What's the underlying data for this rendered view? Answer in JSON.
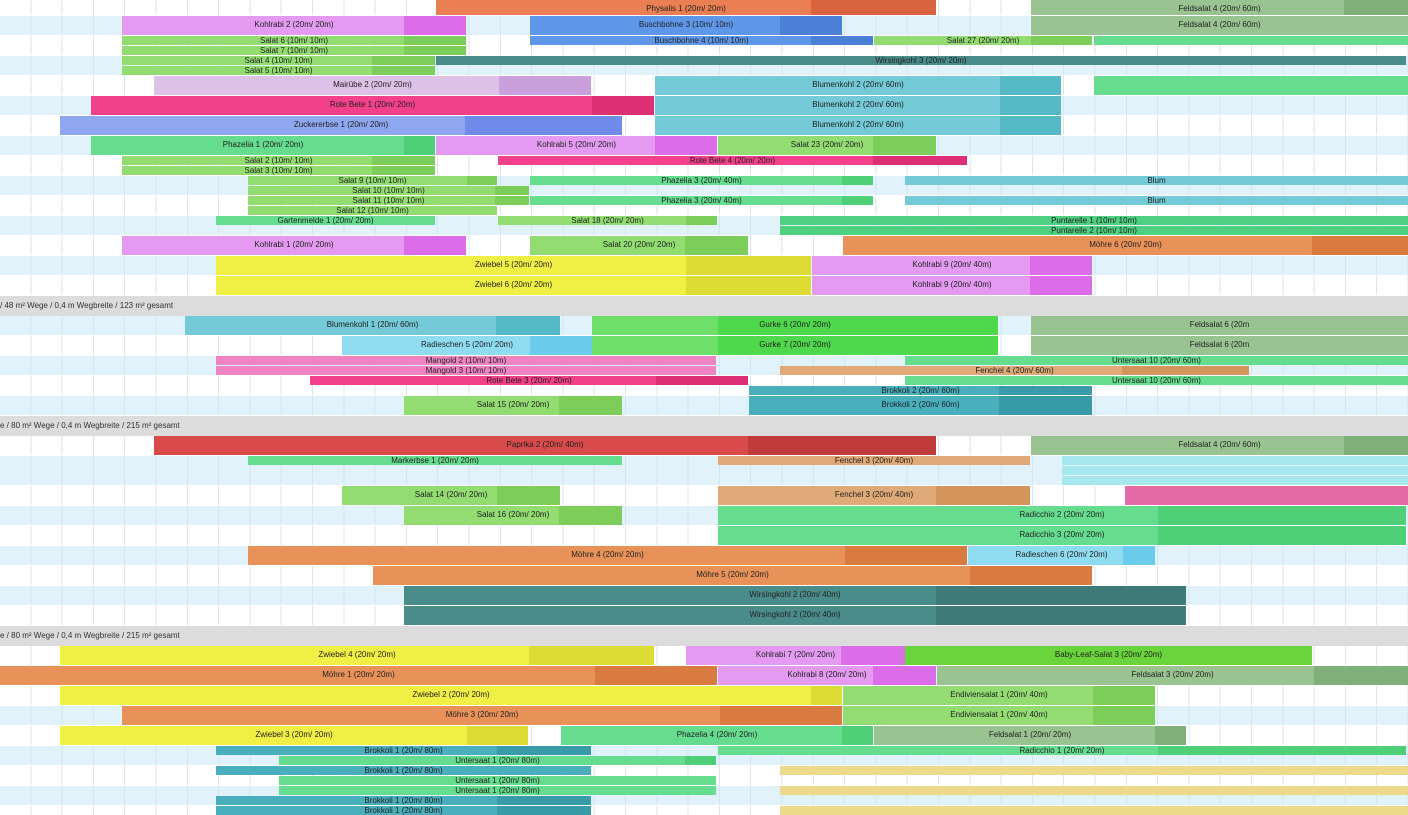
{
  "sections": [
    {
      "label": "/ 48 m² Wege / 0,4 m Wegbreite / 123 m² gesamt"
    },
    {
      "label": "e / 80 m² Wege / 0,4 m Wegbreite / 215 m² gesamt"
    },
    {
      "label": "e / 80 m² Wege / 0,4 m Wegbreite / 215 m² gesamt"
    }
  ],
  "bars": [
    {
      "name": "Physalis 1 (20m/ 20m)",
      "color": "#ea7f54",
      "shade": "#d9633e"
    },
    {
      "name": "Feldsalat 4 (20m/ 60m)",
      "color": "#99c491",
      "shade": "#80b079"
    },
    {
      "name": "Kohlrabi 2 (20m/ 20m)",
      "color": "#e39af0",
      "shade": "#db6ee8"
    },
    {
      "name": "Buschbohne 3 (10m/ 10m)",
      "color": "#5f97e8",
      "shade": "#4a81d6"
    },
    {
      "name": "Feldsalat 4 (20m/ 60m)",
      "color": "#99c491",
      "shade": "#80b079"
    },
    {
      "name": "Salat 6 (10m/ 10m)",
      "color": "#92dc72",
      "shade": "#7ccd5a"
    },
    {
      "name": "Salat 7 (10m/ 10m)",
      "color": "#92dc72",
      "shade": "#7ccd5a"
    },
    {
      "name": "Buschbohne 4 (10m/ 10m)",
      "color": "#5f97e8",
      "shade": "#4a81d6"
    },
    {
      "name": "Salat 27 (20m/ 20m)",
      "color": "#92dc72",
      "shade": "#7ccd5a"
    },
    {
      "name": "",
      "color": "#66dc8e",
      "shade": "#50d07a"
    },
    {
      "name": "Salat 4 (10m/ 10m)",
      "color": "#92dc72",
      "shade": "#7ccd5a"
    },
    {
      "name": "Salat 5 (10m/ 10m)",
      "color": "#92dc72",
      "shade": "#7ccd5a"
    },
    {
      "name": "Wirsingkohl 3 (20m/ 20m)",
      "color": "#4a8c8a",
      "shade": "#3e7a78"
    },
    {
      "name": "Mairübe 2 (20m/ 20m)",
      "color": "#ddc1e6",
      "shade": "#c99fdc"
    },
    {
      "name": "Blumenkohl 2 (20m/ 60m)",
      "color": "#74cad6",
      "shade": "#56b9c6"
    },
    {
      "name": "",
      "color": "#66dc8e",
      "shade": "#50d07a"
    },
    {
      "name": "Rote Bete 1 (20m/ 20m)",
      "color": "#f2408a",
      "shade": "#dd2f76"
    },
    {
      "name": "Blumenkohl 2 (20m/ 60m)",
      "color": "#74cad6",
      "shade": "#56b9c6"
    },
    {
      "name": "Zuckererbse 1 (20m/ 20m)",
      "color": "#8fa6f0",
      "shade": "#6f8ae8"
    },
    {
      "name": "Blumenkohl 2 (20m/ 60m)",
      "color": "#74cad6",
      "shade": "#56b9c6"
    },
    {
      "name": "Phazelia 1 (20m/ 20m)",
      "color": "#66dc8e",
      "shade": "#4fcf78"
    },
    {
      "name": "Kohlrabi 5 (20m/ 20m)",
      "color": "#e39af0",
      "shade": "#db6ee8"
    },
    {
      "name": "Salat 23 (20m/ 20m)",
      "color": "#92dc72",
      "shade": "#7ccd5a"
    },
    {
      "name": "Salat 2 (10m/ 10m)",
      "color": "#92dc72",
      "shade": "#7ccd5a"
    },
    {
      "name": "Rote Bete 4 (20m/ 20m)",
      "color": "#f2408a",
      "shade": "#dd2f76"
    },
    {
      "name": "Salat 3 (10m/ 10m)",
      "color": "#92dc72",
      "shade": "#7ccd5a"
    },
    {
      "name": "Salat 9 (10m/ 10m)",
      "color": "#92dc72",
      "shade": "#7ccd5a"
    },
    {
      "name": "Phazelia 3 (20m/ 40m)",
      "color": "#66dc8e",
      "shade": "#4fcf78"
    },
    {
      "name": "Blum",
      "color": "#74cad6",
      "shade": "#56b9c6"
    },
    {
      "name": "Salat 10 (10m/ 10m)",
      "color": "#92dc72",
      "shade": "#7ccd5a"
    },
    {
      "name": "Salat 11 (10m/ 10m)",
      "color": "#92dc72",
      "shade": "#7ccd5a"
    },
    {
      "name": "Phazelia 3 (20m/ 40m)",
      "color": "#66dc8e",
      "shade": "#4fcf78"
    },
    {
      "name": "Blum",
      "color": "#74cad6",
      "shade": "#56b9c6"
    },
    {
      "name": "Salat 12 (10m/ 10m)",
      "color": "#92dc72",
      "shade": "#7ccd5a"
    },
    {
      "name": "Gartenmelde 1 (20m/ 20m)",
      "color": "#66dc8e",
      "shade": "#4fcf78"
    },
    {
      "name": "Salat 18 (20m/ 20m)",
      "color": "#92dc72",
      "shade": "#7ccd5a"
    },
    {
      "name": "Puntarelle 1 (10m/ 10m)",
      "color": "#4fd080",
      "shade": "#3fc070"
    },
    {
      "name": "Puntarelle 2 (10m/ 10m)",
      "color": "#4fd080",
      "shade": "#3fc070"
    },
    {
      "name": "Kohlrabi 1 (20m/ 20m)",
      "color": "#e39af0",
      "shade": "#db6ee8"
    },
    {
      "name": "Salat 20 (20m/ 20m)",
      "color": "#92dc72",
      "shade": "#7ccd5a"
    },
    {
      "name": "Möhre 6 (20m/ 20m)",
      "color": "#e8925a",
      "shade": "#d97b40"
    },
    {
      "name": "Zwiebel 5 (20m/ 20m)",
      "color": "#f0ef45",
      "shade": "#dcdc35"
    },
    {
      "name": "Kohlrabi 9 (20m/ 40m)",
      "color": "#e39af0",
      "shade": "#db6ee8"
    },
    {
      "name": "Zwiebel 6 (20m/ 20m)",
      "color": "#f0ef45",
      "shade": "#dcdc35"
    },
    {
      "name": "Kohlrabi 9 (20m/ 40m)",
      "color": "#e39af0",
      "shade": "#db6ee8"
    },
    {
      "name": "Blumenkohl 1 (20m/ 60m)",
      "color": "#74cad6",
      "shade": "#56b9c6"
    },
    {
      "name": "Gurke 6 (20m/ 20m)",
      "color": "#6ee06a",
      "shade": "#50d84c"
    },
    {
      "name": "Feldsalat 6 (20m",
      "color": "#99c491",
      "shade": "#80b079"
    },
    {
      "name": "Radieschen 5 (20m/ 20m)",
      "color": "#8fdcf0",
      "shade": "#6acbea"
    },
    {
      "name": "Gurke 7 (20m/ 20m)",
      "color": "#6ee06a",
      "shade": "#50d84c"
    },
    {
      "name": "Feldsalat 6 (20m",
      "color": "#99c491",
      "shade": "#80b079"
    },
    {
      "name": "Mangold 2 (10m/ 10m)",
      "color": "#f083c4",
      "shade": "#e569b3"
    },
    {
      "name": "Untersaat 10 (20m/ 60m)",
      "color": "#66dc8e",
      "shade": "#4fcf78"
    },
    {
      "name": "Mangold 3 (10m/ 10m)",
      "color": "#f083c4",
      "shade": "#e569b3"
    },
    {
      "name": "Fenchel 4 (20m/ 60m)",
      "color": "#dfaa78",
      "shade": "#d4955a"
    },
    {
      "name": "Rote Bete 3 (20m/ 20m)",
      "color": "#f2408a",
      "shade": "#dd2f76"
    },
    {
      "name": "Untersaat 10 (20m/ 60m)",
      "color": "#66dc8e",
      "shade": "#4fcf78"
    },
    {
      "name": "Brokkoli 2 (20m/ 60m)",
      "color": "#4aafbc",
      "shade": "#3a9ba8"
    },
    {
      "name": "Salat 15 (20m/ 20m)",
      "color": "#92dc72",
      "shade": "#7ccd5a"
    },
    {
      "name": "Brokkoli 2 (20m/ 60m)",
      "color": "#4aafbc",
      "shade": "#3a9ba8"
    },
    {
      "name": "Paprika 2 (20m/ 40m)",
      "color": "#d94b4b",
      "shade": "#c03c3c"
    },
    {
      "name": "Feldsalat 4 (20m/ 60m)",
      "color": "#99c491",
      "shade": "#80b079"
    },
    {
      "name": "Markerbse 1 (20m/ 20m)",
      "color": "#66dc8e",
      "shade": "#4fcf78"
    },
    {
      "name": "Fenchel 3 (20m/ 40m)",
      "color": "#dfaa78",
      "shade": "#d4955a"
    },
    {
      "name": "",
      "color": "#a6e8ee",
      "shade": "#8cdde6"
    },
    {
      "name": "",
      "color": "#a6e8ee",
      "shade": "#8cdde6"
    },
    {
      "name": "",
      "color": "#a6e8ee",
      "shade": "#8cdde6"
    },
    {
      "name": "Salat 14 (20m/ 20m)",
      "color": "#92dc72",
      "shade": "#7ccd5a"
    },
    {
      "name": "Fenchel 3 (20m/ 40m)",
      "color": "#dfaa78",
      "shade": "#d4955a"
    },
    {
      "name": "",
      "color": "#e46aa6",
      "shade": "#d9559a"
    },
    {
      "name": "Salat 16 (20m/ 20m)",
      "color": "#92dc72",
      "shade": "#7ccd5a"
    },
    {
      "name": "Radicchio 2 (20m/ 20m)",
      "color": "#66dc8e",
      "shade": "#4fcf78"
    },
    {
      "name": "Radicchio 3 (20m/ 20m)",
      "color": "#66dc8e",
      "shade": "#4fcf78"
    },
    {
      "name": "Möhre 4 (20m/ 20m)",
      "color": "#e8925a",
      "shade": "#d97b40"
    },
    {
      "name": "Radieschen 6 (20m/ 20m)",
      "color": "#8fdcf0",
      "shade": "#6acbea"
    },
    {
      "name": "Möhre 5 (20m/ 20m)",
      "color": "#e8925a",
      "shade": "#d97b40"
    },
    {
      "name": "Wirsingkohl 2 (20m/ 40m)",
      "color": "#4a8c8a",
      "shade": "#3e7a78"
    },
    {
      "name": "Wirsingkohl 2 (20m/ 40m)",
      "color": "#4a8c8a",
      "shade": "#3e7a78"
    },
    {
      "name": "Zwiebel 4 (20m/ 20m)",
      "color": "#f0ef45",
      "shade": "#dcdc35"
    },
    {
      "name": "Kohlrabi 7 (20m/ 20m)",
      "color": "#e39af0",
      "shade": "#db6ee8"
    },
    {
      "name": "Baby-Leaf-Salat 3 (20m/ 20m)",
      "color": "#6ad43c",
      "shade": "#56c42a"
    },
    {
      "name": "Möhre 1 (20m/ 20m)",
      "color": "#e8925a",
      "shade": "#d97b40"
    },
    {
      "name": "Kohlrabi 8 (20m/ 20m)",
      "color": "#e39af0",
      "shade": "#db6ee8"
    },
    {
      "name": "Feldsalat 3 (20m/ 20m)",
      "color": "#99c491",
      "shade": "#80b079"
    },
    {
      "name": "Zwiebel 2 (20m/ 20m)",
      "color": "#f0ef45",
      "shade": "#dcdc35"
    },
    {
      "name": "Endiviensalat 1 (20m/ 40m)",
      "color": "#92dc72",
      "shade": "#7ccd5a"
    },
    {
      "name": "Möhre 3 (20m/ 20m)",
      "color": "#e8925a",
      "shade": "#d97b40"
    },
    {
      "name": "Endiviensalat 1 (20m/ 40m)",
      "color": "#92dc72",
      "shade": "#7ccd5a"
    },
    {
      "name": "Zwiebel 3 (20m/ 20m)",
      "color": "#f0ef45",
      "shade": "#dcdc35"
    },
    {
      "name": "Phazelia 4 (20m/ 20m)",
      "color": "#66dc8e",
      "shade": "#4fcf78"
    },
    {
      "name": "Feldsalat 1 (20m/ 20m)",
      "color": "#99c491",
      "shade": "#80b079"
    },
    {
      "name": "Brokkoli 1 (20m/ 80m)",
      "color": "#4aafbc",
      "shade": "#3a9ba8"
    },
    {
      "name": "Radicchio 1 (20m/ 20m)",
      "color": "#66dc8e",
      "shade": "#4fcf78"
    },
    {
      "name": "Untersaat 1 (20m/ 80m)",
      "color": "#66dc8e",
      "shade": "#4fcf78"
    },
    {
      "name": "Brokkoli 1 (20m/ 80m)",
      "color": "#4aafbc",
      "shade": "#3a9ba8"
    },
    {
      "name": "",
      "color": "#ecda8a",
      "shade": "#e2cc70"
    },
    {
      "name": "Untersaat 1 (20m/ 80m)",
      "color": "#66dc8e",
      "shade": "#4fcf78"
    },
    {
      "name": "Untersaat 1 (20m/ 80m)",
      "color": "#66dc8e",
      "shade": "#4fcf78"
    },
    {
      "name": "",
      "color": "#ecda8a",
      "shade": "#e2cc70"
    },
    {
      "name": "Brokkoli 1 (20m/ 80m)",
      "color": "#4aafbc",
      "shade": "#3a9ba8"
    },
    {
      "name": "Brokkoli 1 (20m/ 80m)",
      "color": "#4aafbc",
      "shade": "#3a9ba8"
    },
    {
      "name": "",
      "color": "#ecda8a",
      "shade": "#e2cc70"
    }
  ]
}
